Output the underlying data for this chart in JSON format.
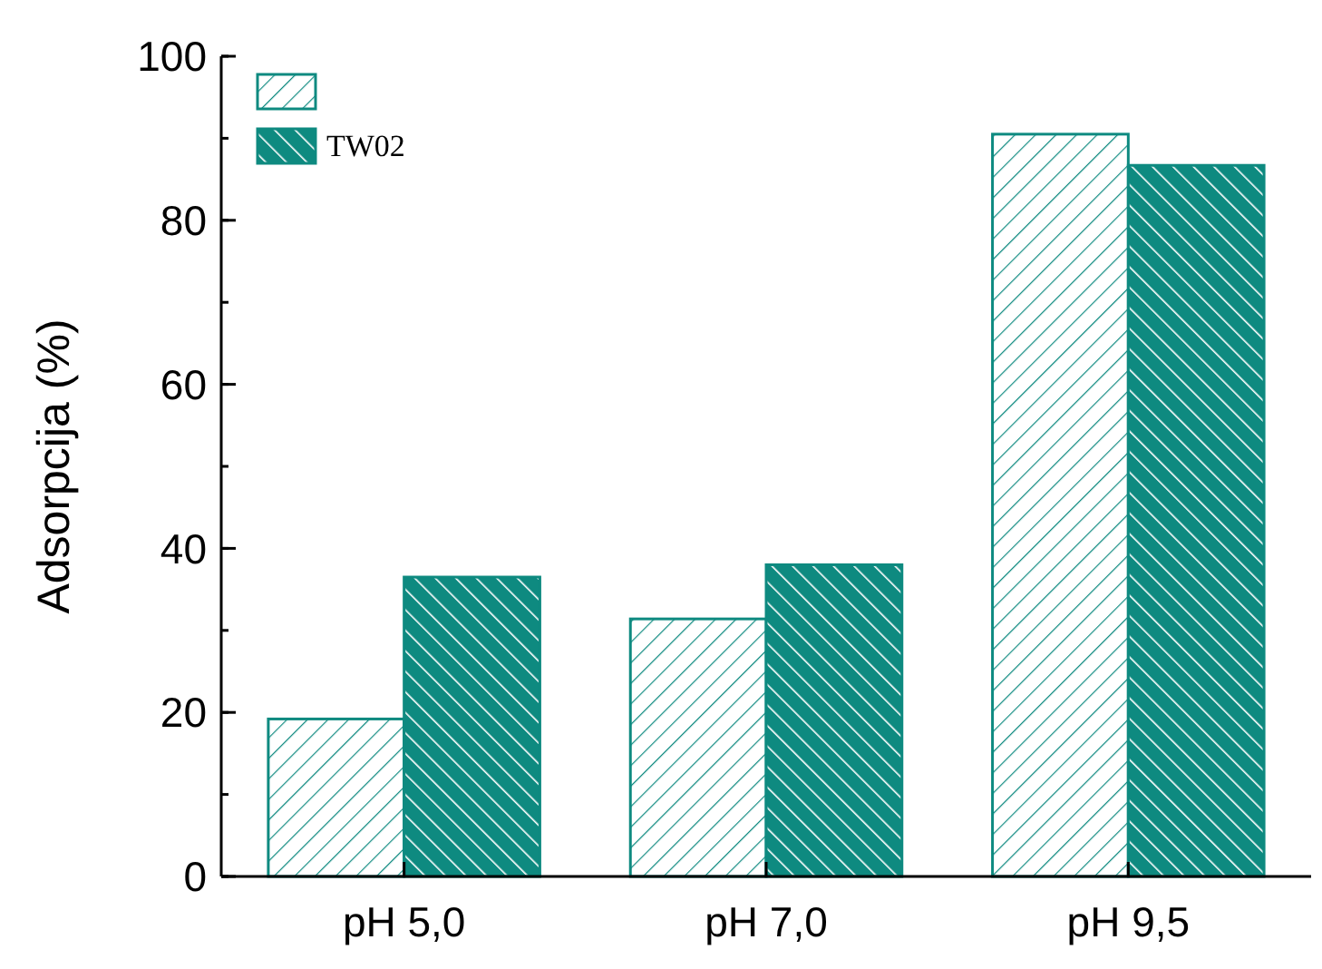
{
  "chart_data": {
    "type": "bar",
    "ylabel": "Adsorpcija (%)",
    "categories": [
      "pH 5,0",
      "pH 7,0",
      "pH 9,5"
    ],
    "series": [
      {
        "color": "#0e8a80",
        "values": [
          19.2,
          31.4,
          90.5
        ]
      },
      {
        "name": "TW02",
        "color": "#0e8a80",
        "values": [
          36.5,
          38.0,
          86.7
        ]
      }
    ],
    "ylim": [
      0,
      100
    ],
    "yticks": [
      0,
      20,
      40,
      60,
      80,
      100
    ],
    "legend": "top left",
    "grid": false
  }
}
